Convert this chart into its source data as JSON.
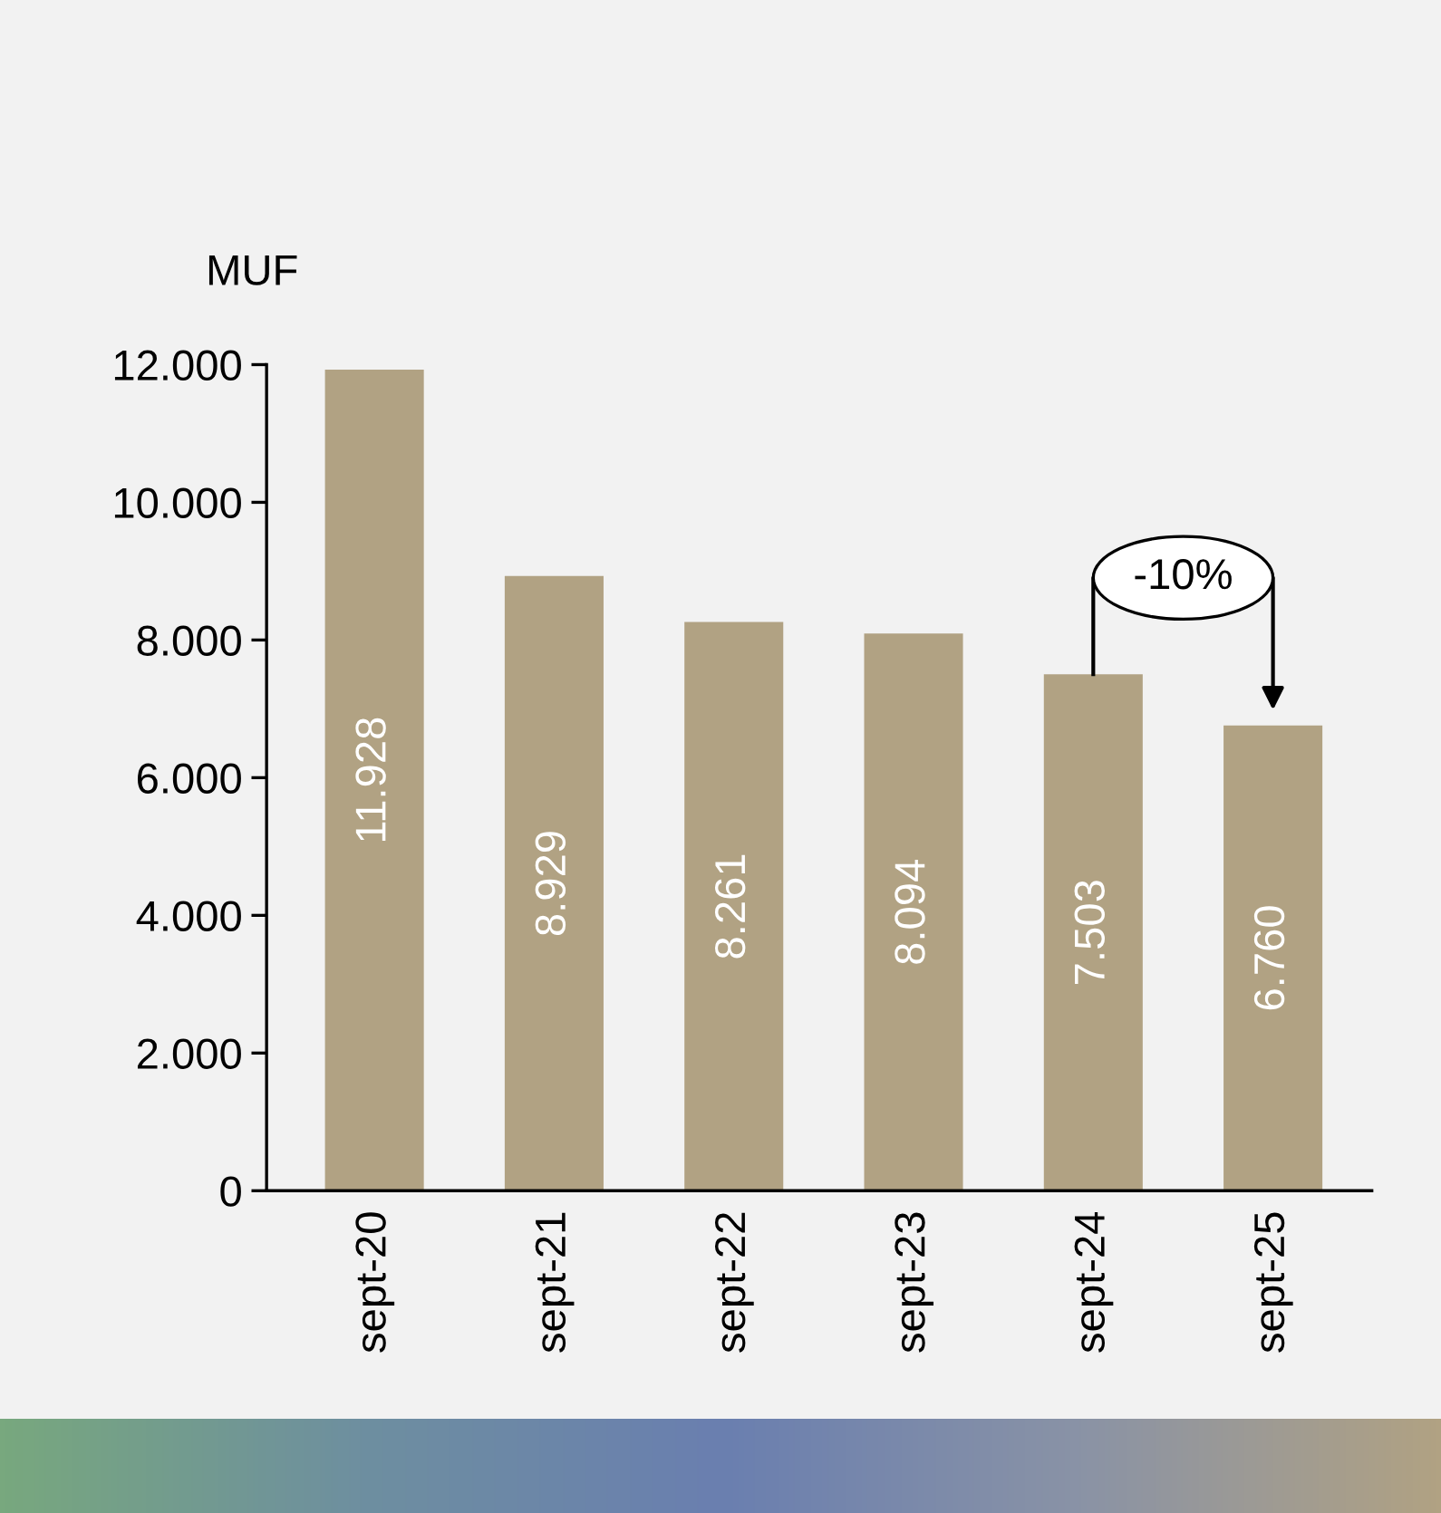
{
  "chart_data": {
    "type": "bar",
    "ylabel": "MUF",
    "categories": [
      "sept-20",
      "sept-21",
      "sept-22",
      "sept-23",
      "sept-24",
      "sept-25"
    ],
    "values": [
      11928,
      8929,
      8261,
      8094,
      7503,
      6760
    ],
    "value_labels": [
      "11.928",
      "8.929",
      "8.261",
      "8.094",
      "7.503",
      "6.760"
    ],
    "color": "#b1a283",
    "ylim": [
      0,
      12000
    ],
    "yticks": [
      {
        "value": 0,
        "label": "0"
      },
      {
        "value": 2000,
        "label": "2.000"
      },
      {
        "value": 4000,
        "label": "4.000"
      },
      {
        "value": 6000,
        "label": "6.000"
      },
      {
        "value": 8000,
        "label": "8.000"
      },
      {
        "value": 10000,
        "label": "10.000"
      },
      {
        "value": 12000,
        "label": "12.000"
      }
    ],
    "annotations": [
      "-10%"
    ],
    "grid": false,
    "legend": false
  }
}
